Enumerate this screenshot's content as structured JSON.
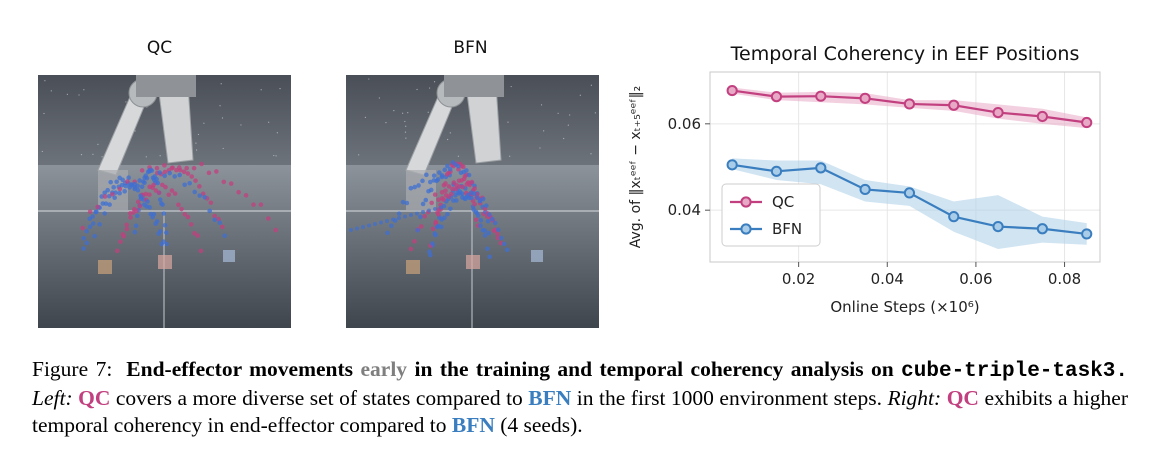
{
  "panels": {
    "left_title": "QC",
    "right_title": "BFN"
  },
  "colors": {
    "qc": "#c2407f",
    "bfn": "#3a7ebf",
    "qc_fill": "#e7a9c6",
    "bfn_fill": "#a9cde8"
  },
  "chart_data": {
    "type": "line",
    "title": "Temporal Coherency in EEF Positions",
    "xlabel": "Online Steps (×10⁶)",
    "ylabel": "Avg. of ‖xₜᵉᵉᶠ − xₜ₊₅ᵉᵉᶠ‖₂",
    "xlim": [
      0.0,
      0.088
    ],
    "ylim": [
      0.028,
      0.072
    ],
    "xticks": [
      0.02,
      0.04,
      0.06,
      0.08
    ],
    "xtick_labels": [
      "0.02",
      "0.04",
      "0.06",
      "0.08"
    ],
    "yticks": [
      0.04,
      0.06
    ],
    "ytick_labels": [
      "0.04",
      "0.06"
    ],
    "grid": true,
    "legend": "center-left",
    "x": [
      0.005,
      0.015,
      0.025,
      0.035,
      0.045,
      0.055,
      0.065,
      0.075,
      0.085
    ],
    "series": [
      {
        "name": "QC",
        "color": "#c2407f",
        "values": [
          0.0677,
          0.0663,
          0.0664,
          0.0659,
          0.0646,
          0.0643,
          0.0626,
          0.0617,
          0.0603
        ],
        "lower": [
          0.067,
          0.0655,
          0.065,
          0.0645,
          0.0637,
          0.063,
          0.0612,
          0.06,
          0.059
        ],
        "upper": [
          0.0684,
          0.0672,
          0.0674,
          0.0671,
          0.0655,
          0.0655,
          0.0645,
          0.0635,
          0.0615
        ]
      },
      {
        "name": "BFN",
        "color": "#3a7ebf",
        "values": [
          0.0505,
          0.049,
          0.0498,
          0.0448,
          0.044,
          0.0385,
          0.0362,
          0.0357,
          0.0345
        ],
        "lower": [
          0.0495,
          0.047,
          0.046,
          0.042,
          0.041,
          0.035,
          0.031,
          0.0325,
          0.032
        ],
        "upper": [
          0.052,
          0.0515,
          0.0515,
          0.047,
          0.0455,
          0.042,
          0.0435,
          0.0385,
          0.037
        ]
      }
    ]
  },
  "caption": {
    "label": "Figure 7:",
    "bold_a": "End-effector movements",
    "early": "early",
    "bold_b": "in the training and temporal coherency analysis on",
    "task": "cube-triple-task3.",
    "left": "Left:",
    "qc1": "QC",
    "text1": "covers a more diverse set of states compared to",
    "bfn1": "BFN",
    "text2": "in the first 1000 environment steps.",
    "right": "Right:",
    "qc2": "QC",
    "text3": "exhibits a higher temporal coherency in end-effector compared to",
    "bfn2": "BFN",
    "text4": "(4 seeds)."
  }
}
